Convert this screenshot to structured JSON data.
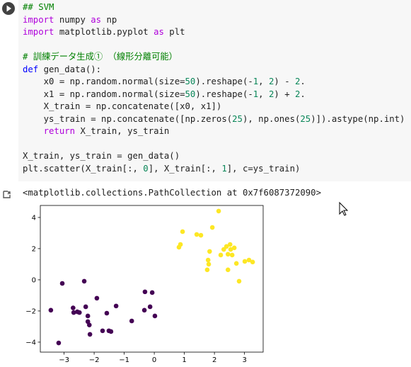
{
  "code_cell": {
    "blocks": [
      [
        "## SVM",
        "import numpy as np",
        "import matplotlib.pyplot as plt"
      ],
      [
        "# 訓練データ生成① （線形分離可能）",
        "def gen_data():",
        "    x0 = np.random.normal(size=50).reshape(-1, 2) - 2.",
        "    x1 = np.random.normal(size=50).reshape(-1, 2) + 2.",
        "    X_train = np.concatenate([x0, x1])",
        "    ys_train = np.concatenate([np.zeros(25), np.ones(25)]).astype(np.int)",
        "    return X_train, ys_train"
      ],
      [
        "X_train, ys_train = gen_data()",
        "plt.scatter(X_train[:, 0], X_train[:, 1], c=ys_train)"
      ]
    ]
  },
  "output_text": "<matplotlib.collections.PathCollection at 0x7f6087372090>",
  "chart_data": {
    "type": "scatter",
    "xlim": [
      -3.79,
      3.62
    ],
    "ylim": [
      -4.64,
      4.77
    ],
    "xticks": [
      {
        "value": -3,
        "label": "−3"
      },
      {
        "value": -2,
        "label": "−2"
      },
      {
        "value": -1,
        "label": "−1"
      },
      0,
      1,
      2,
      3
    ],
    "yticks": [
      {
        "value": -4,
        "label": "−4"
      },
      {
        "value": -2,
        "label": "−2"
      },
      0,
      2,
      4
    ],
    "grid": false,
    "series": [
      {
        "color": "#440154",
        "x": [
          -3.44,
          -3.18,
          -3.06,
          -2.7,
          -2.68,
          -2.56,
          -2.49,
          -2.33,
          -2.28,
          -2.21,
          -2.16,
          -2.14,
          -1.91,
          -1.72,
          -1.58,
          -1.51,
          -1.44,
          -1.27,
          -0.75,
          -0.31,
          -0.33,
          -0.14,
          -0.07,
          0.02,
          -2.21
        ],
        "values": [
          -1.95,
          -4.05,
          -0.23,
          -1.8,
          -2.1,
          -2.05,
          -2.1,
          -0.09,
          -1.73,
          -2.32,
          -2.9,
          -3.5,
          -1.18,
          -3.27,
          -2.14,
          -3.27,
          -3.32,
          -1.68,
          -2.64,
          -0.77,
          -1.95,
          -1.73,
          -0.82,
          -2.32,
          -2.68
        ]
      },
      {
        "color": "#fde725",
        "x": [
          0.82,
          0.87,
          0.94,
          1.41,
          1.55,
          1.84,
          1.93,
          2.14,
          1.76,
          1.81,
          1.79,
          2.21,
          2.31,
          2.4,
          2.45,
          2.52,
          2.59,
          2.54,
          2.45,
          2.66,
          2.73,
          2.82,
          3.01,
          3.15,
          3.27
        ],
        "values": [
          2.09,
          2.27,
          3.09,
          2.91,
          2.86,
          1.82,
          3.36,
          4.41,
          0.64,
          1.0,
          1.27,
          1.59,
          1.95,
          2.14,
          1.64,
          2.27,
          1.59,
          1.95,
          0.64,
          2.05,
          1.05,
          -0.09,
          1.18,
          1.27,
          1.14
        ]
      }
    ]
  }
}
